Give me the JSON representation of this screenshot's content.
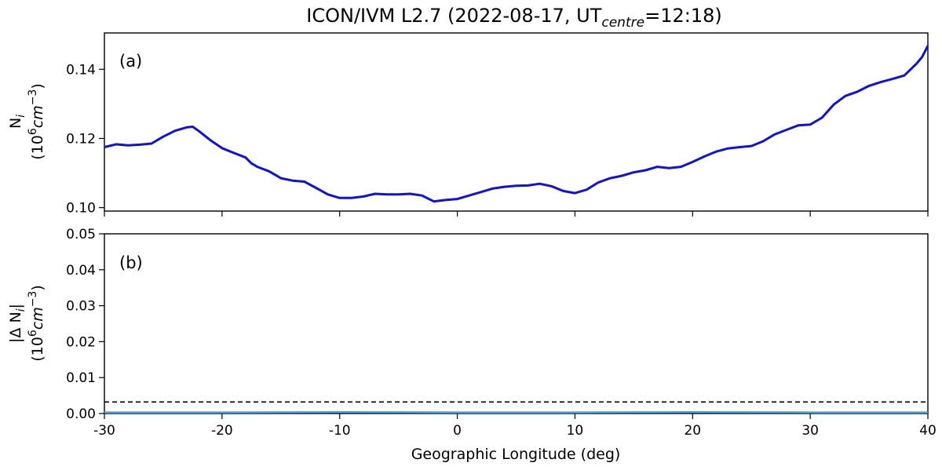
{
  "chart_data": [
    {
      "type": "line",
      "panel_tag": "(a)",
      "title": "ICON/IVM L2.7 (2022-08-17, UT",
      "title_sub": "centre",
      "title_tail": "=12:18)",
      "ylabel_line1": "N",
      "ylabel_line1_sub": "i",
      "ylabel_line2": "(10",
      "ylabel_line2_sup": "6",
      "ylabel_line2_tail": "cm",
      "ylabel_line2_sup2": "−3",
      "ylabel_line2_end": ")",
      "xlim": [
        -30,
        40
      ],
      "ylim": [
        0.099,
        0.1505
      ],
      "yticks": [
        0.1,
        0.12,
        0.14
      ],
      "ytick_labels": [
        "0.10",
        "0.12",
        "0.14"
      ],
      "grid": false,
      "series": [
        {
          "color": "#1010e0",
          "x": [
            -30,
            -29,
            -28,
            -27,
            -26,
            -25,
            -24,
            -23,
            -22.5,
            -22,
            -21,
            -20,
            -19,
            -18,
            -17.5,
            -17,
            -16,
            -15,
            -14,
            -13,
            -12,
            -11,
            -10,
            -9,
            -8,
            -7,
            -6,
            -5,
            -4,
            -3,
            -2,
            -1,
            0,
            1,
            2,
            3,
            4,
            5,
            6,
            7,
            8,
            9,
            10,
            11,
            12,
            13,
            14,
            15,
            16,
            17,
            18,
            19,
            20,
            21,
            22,
            23,
            24,
            25,
            26,
            27,
            28,
            29,
            30,
            31,
            32,
            33,
            34,
            35,
            36,
            37,
            38,
            39,
            39.5,
            40
          ],
          "y": [
            0.1175,
            0.1183,
            0.118,
            0.1182,
            0.1185,
            0.1205,
            0.1222,
            0.1232,
            0.1234,
            0.1222,
            0.1195,
            0.1172,
            0.1158,
            0.1145,
            0.1128,
            0.1118,
            0.1105,
            0.1085,
            0.1078,
            0.1075,
            0.1057,
            0.1038,
            0.1028,
            0.1028,
            0.1032,
            0.104,
            0.1038,
            0.1038,
            0.104,
            0.1035,
            0.1018,
            0.1022,
            0.1025,
            0.1035,
            0.1045,
            0.1055,
            0.106,
            0.1063,
            0.1064,
            0.1069,
            0.1062,
            0.1048,
            0.1042,
            0.1052,
            0.1073,
            0.1085,
            0.1092,
            0.1102,
            0.1108,
            0.1118,
            0.1114,
            0.1118,
            0.1132,
            0.1148,
            0.1162,
            0.1171,
            0.1175,
            0.1178,
            0.1192,
            0.1212,
            0.1225,
            0.1238,
            0.124,
            0.126,
            0.1298,
            0.1323,
            0.1335,
            0.1352,
            0.1363,
            0.1372,
            0.1382,
            0.1415,
            0.1435,
            0.1468
          ]
        }
      ]
    },
    {
      "type": "line",
      "panel_tag": "(b)",
      "xlabel": "Geographic Longitude (deg)",
      "ylabel_line1": "|Δ N",
      "ylabel_line1_sub": "i",
      "ylabel_line1_tail": "|",
      "ylabel_line2": "(10",
      "ylabel_line2_sup": "6",
      "ylabel_line2_tail": "cm",
      "ylabel_line2_sup2": "−3",
      "ylabel_line2_end": ")",
      "xlim": [
        -30,
        40
      ],
      "ylim": [
        0,
        0.05
      ],
      "xticks": [
        -30,
        -20,
        -10,
        0,
        10,
        20,
        30,
        40
      ],
      "xtick_labels": [
        "-30",
        "-20",
        "-10",
        "0",
        "10",
        "20",
        "30",
        "40"
      ],
      "yticks": [
        0.0,
        0.01,
        0.02,
        0.03,
        0.04,
        0.05
      ],
      "ytick_labels": [
        "0.00",
        "0.01",
        "0.02",
        "0.03",
        "0.04",
        "0.05"
      ],
      "grid": false,
      "threshold": {
        "y": 0.0032,
        "style": "dashed",
        "color": "#000000"
      },
      "series": [
        {
          "color": "#4aa3df",
          "x": [
            -30,
            -20,
            -10,
            0,
            10,
            20,
            30,
            40
          ],
          "y": [
            0.0003,
            0.0003,
            0.0004,
            0.0003,
            0.0003,
            0.0004,
            0.0003,
            0.0003
          ]
        }
      ]
    }
  ]
}
